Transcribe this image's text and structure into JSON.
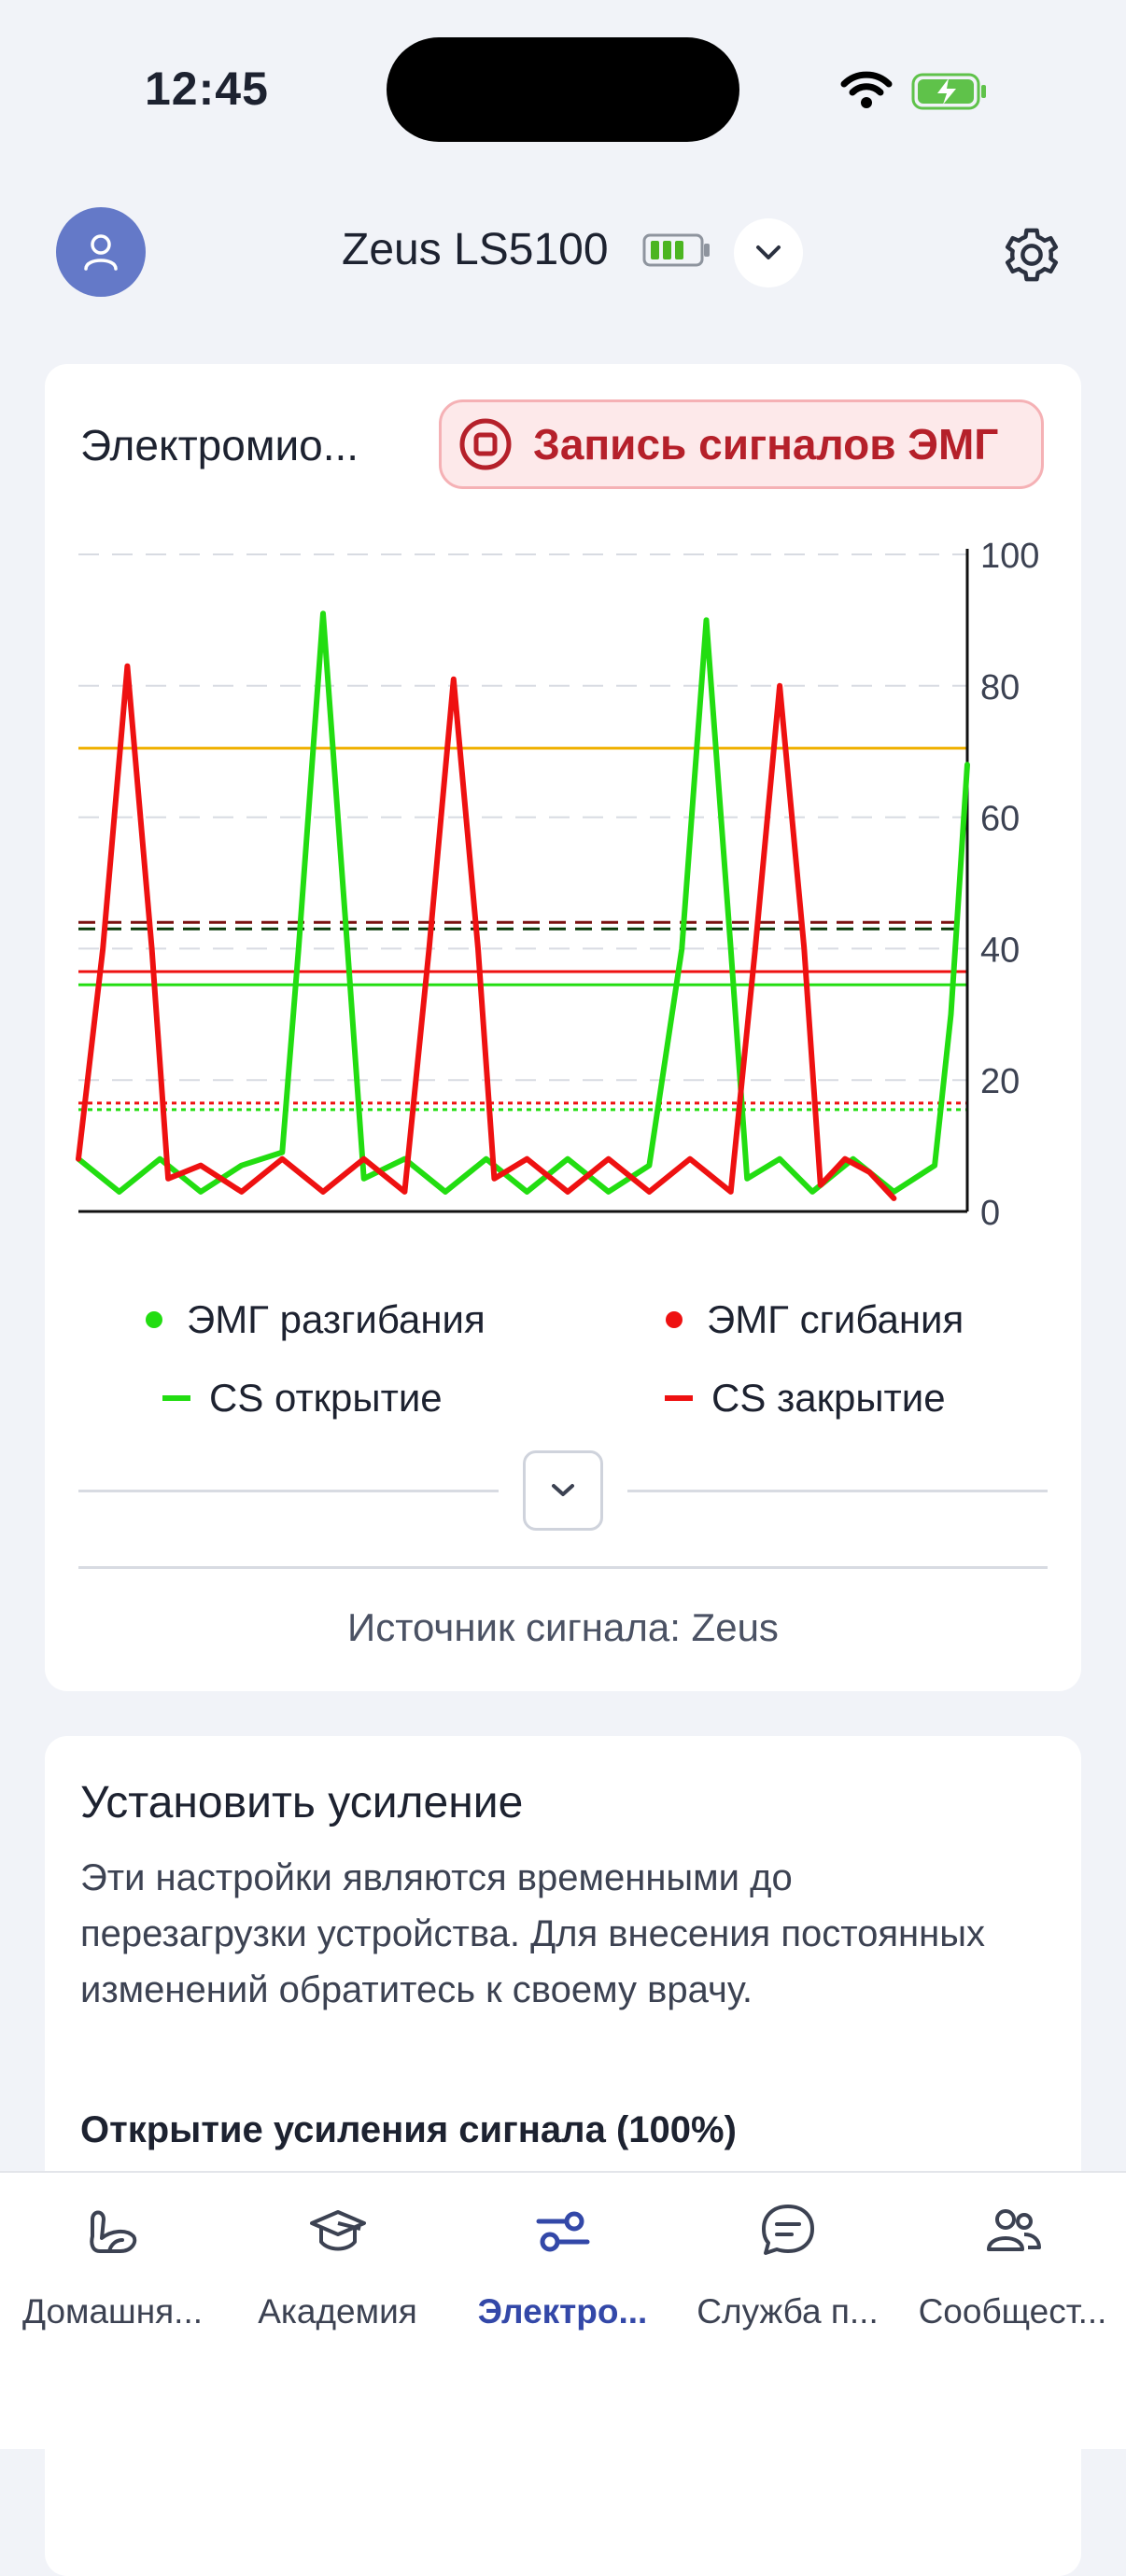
{
  "status_bar": {
    "time": "12:45"
  },
  "header": {
    "device_name": "Zeus LS5100"
  },
  "emg_card": {
    "title": "Электромио...",
    "record_button": "Запись сигналов ЭМГ",
    "legend": [
      {
        "label": "ЭМГ разгибания",
        "color": "#22dd11"
      },
      {
        "label": "ЭМГ сгибания",
        "color": "#ee1111"
      },
      {
        "label": "CS открытие",
        "color": "#22dd11"
      },
      {
        "label": "CS закрытие",
        "color": "#ee1111"
      }
    ],
    "source": "Источник сигнала: Zeus"
  },
  "chart_data": {
    "type": "line",
    "ylim": [
      0,
      100
    ],
    "yticks": [
      "0",
      "20",
      "40",
      "60",
      "80",
      "100"
    ],
    "series": [
      {
        "name": "ЭМГ разгибания",
        "color": "#22dd11",
        "points": [
          [
            0,
            8
          ],
          [
            5,
            3
          ],
          [
            10,
            8
          ],
          [
            15,
            3
          ],
          [
            20,
            7
          ],
          [
            25,
            9
          ],
          [
            27,
            40
          ],
          [
            30,
            91
          ],
          [
            33,
            40
          ],
          [
            35,
            5
          ],
          [
            40,
            8
          ],
          [
            45,
            3
          ],
          [
            50,
            8
          ],
          [
            55,
            3
          ],
          [
            60,
            8
          ],
          [
            65,
            3
          ],
          [
            70,
            7
          ],
          [
            74,
            40
          ],
          [
            77,
            90
          ],
          [
            80,
            40
          ],
          [
            82,
            5
          ],
          [
            86,
            8
          ],
          [
            90,
            3
          ],
          [
            95,
            8
          ],
          [
            100,
            3
          ],
          [
            105,
            7
          ],
          [
            107,
            30
          ],
          [
            109,
            68
          ]
        ]
      },
      {
        "name": "ЭМГ сгибания",
        "color": "#ee1111",
        "points": [
          [
            0,
            8
          ],
          [
            3,
            40
          ],
          [
            6,
            83
          ],
          [
            9,
            40
          ],
          [
            11,
            5
          ],
          [
            15,
            7
          ],
          [
            20,
            3
          ],
          [
            25,
            8
          ],
          [
            30,
            3
          ],
          [
            35,
            8
          ],
          [
            40,
            3
          ],
          [
            43,
            40
          ],
          [
            46,
            81
          ],
          [
            49,
            40
          ],
          [
            51,
            5
          ],
          [
            55,
            8
          ],
          [
            60,
            3
          ],
          [
            65,
            8
          ],
          [
            70,
            3
          ],
          [
            75,
            8
          ],
          [
            80,
            3
          ],
          [
            83,
            40
          ],
          [
            86,
            80
          ],
          [
            89,
            40
          ],
          [
            91,
            4
          ],
          [
            94,
            8
          ],
          [
            97,
            6
          ],
          [
            100,
            2
          ]
        ]
      }
    ],
    "lines": [
      {
        "value": 70.5,
        "color": "#f0b000",
        "style": "solid"
      },
      {
        "value": 44,
        "color": "#7a1010",
        "style": "dashed"
      },
      {
        "value": 43,
        "color": "#0a3a0a",
        "style": "dashed"
      },
      {
        "value": 36.5,
        "color": "#ee1111",
        "style": "solid"
      },
      {
        "value": 34.5,
        "color": "#22dd11",
        "style": "solid"
      },
      {
        "value": 16.5,
        "color": "#ee1111",
        "style": "dotted"
      },
      {
        "value": 15.5,
        "color": "#22dd11",
        "style": "dotted"
      }
    ]
  },
  "gain_card": {
    "title": "Установить усиление",
    "description": "Эти настройки являются временными до перезагрузки устройства. Для внесения постоянных изменений обратитесь к своему врачу.",
    "subtitle": "Открытие усиления сигнала (100%)"
  },
  "tabs": [
    {
      "label": "Домашня...",
      "icon": "home-arm-icon"
    },
    {
      "label": "Академия",
      "icon": "graduation-cap-icon"
    },
    {
      "label": "Электро...",
      "icon": "sliders-icon",
      "active": true
    },
    {
      "label": "Служба п...",
      "icon": "chat-icon"
    },
    {
      "label": "Сообщест...",
      "icon": "community-icon"
    }
  ]
}
